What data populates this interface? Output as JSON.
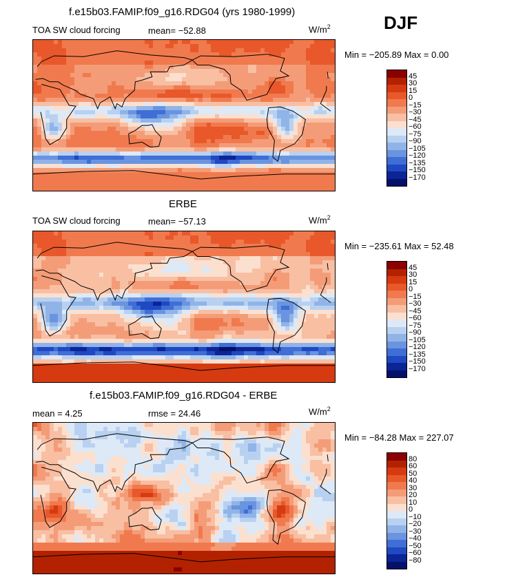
{
  "season": "DJF",
  "panels": [
    {
      "title": "f.e15b03.FAMIP.f09_g16.RDG04 (yrs 1980-1999)",
      "left_label": "TOA SW cloud forcing",
      "stat_label": "mean= −52.88",
      "units": "W/m",
      "units_exp": "2",
      "minmax": "Min = −205.89  Max =   0.00",
      "colorbar": {
        "labels": [
          "45",
          "30",
          "15",
          "0",
          "−15",
          "−30",
          "−45",
          "−60",
          "−75",
          "−90",
          "−105",
          "−120",
          "−135",
          "−150",
          "−170"
        ],
        "colors": [
          "#8b0000",
          "#b22200",
          "#d63a10",
          "#e8582a",
          "#f07a4e",
          "#f49c78",
          "#f8bfa3",
          "#fbe0d0",
          "#dde9f7",
          "#b9d1f0",
          "#90b4e8",
          "#6a94e0",
          "#3f6ed6",
          "#1f48c2",
          "#0b2496",
          "#04106a"
        ]
      },
      "field": "model"
    },
    {
      "title": "ERBE",
      "left_label": "TOA SW cloud forcing",
      "stat_label": "mean= −57.13",
      "units": "W/m",
      "units_exp": "2",
      "minmax": "Min = −235.61  Max =  52.48",
      "colorbar": {
        "labels": [
          "45",
          "30",
          "15",
          "0",
          "−15",
          "−30",
          "−45",
          "−60",
          "−75",
          "−90",
          "−105",
          "−120",
          "−135",
          "−150",
          "−170"
        ],
        "colors": [
          "#8b0000",
          "#b22200",
          "#d63a10",
          "#e8582a",
          "#f07a4e",
          "#f49c78",
          "#f8bfa3",
          "#fbe0d0",
          "#dde9f7",
          "#b9d1f0",
          "#90b4e8",
          "#6a94e0",
          "#3f6ed6",
          "#1f48c2",
          "#0b2496",
          "#04106a"
        ]
      },
      "field": "obs"
    },
    {
      "title": "f.e15b03.FAMIP.f09_g16.RDG04 - ERBE",
      "left_label": "mean =    4.25",
      "stat_label": "rmse =   24.46",
      "units": "W/m",
      "units_exp": "2",
      "minmax": "Min = −84.28  Max = 227.07",
      "colorbar": {
        "labels": [
          "80",
          "60",
          "50",
          "40",
          "30",
          "20",
          "10",
          "0",
          "−10",
          "−20",
          "−30",
          "−40",
          "−50",
          "−60",
          "−80"
        ],
        "colors": [
          "#8b0000",
          "#b22200",
          "#d63a10",
          "#e8582a",
          "#f07a4e",
          "#f49c78",
          "#f8bfa3",
          "#fbe0d0",
          "#dde9f7",
          "#b9d1f0",
          "#90b4e8",
          "#6a94e0",
          "#3f6ed6",
          "#1f48c2",
          "#0b2496",
          "#04106a"
        ]
      },
      "field": "diff"
    }
  ]
}
